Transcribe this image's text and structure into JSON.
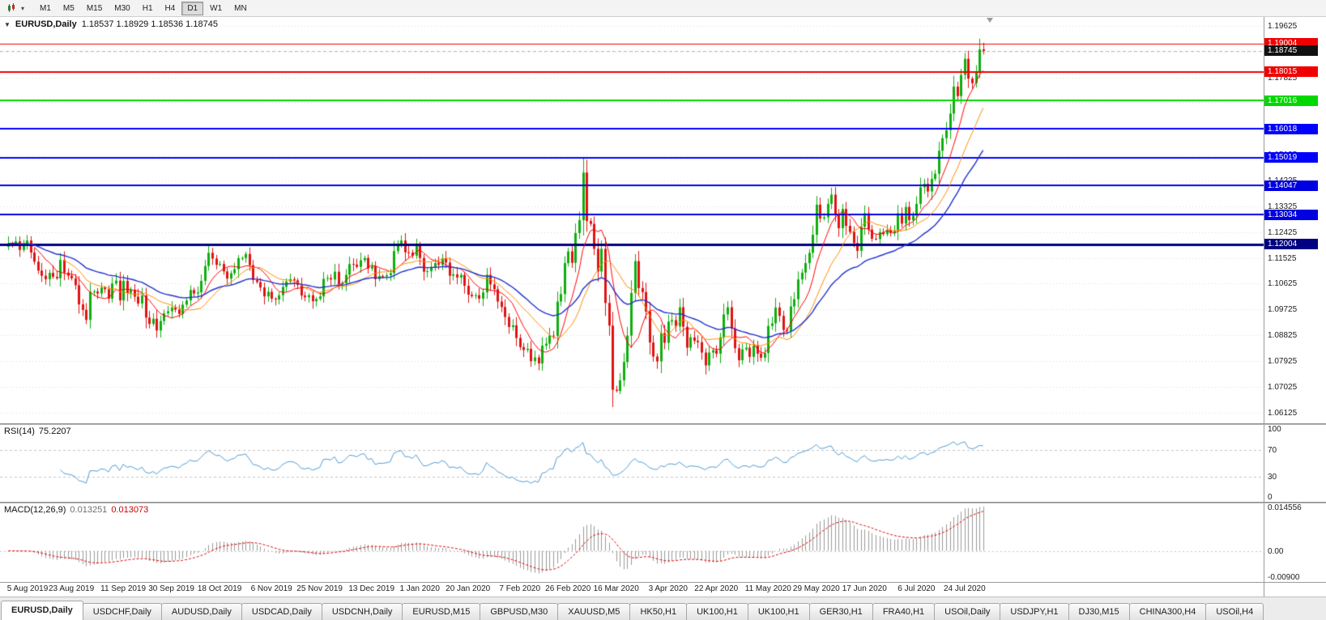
{
  "toolbar": {
    "timeframes": [
      "M1",
      "M5",
      "M15",
      "M30",
      "H1",
      "H4",
      "D1",
      "W1",
      "MN"
    ],
    "active": "D1",
    "chart_type_icon": "candlestick-chart-dropdown"
  },
  "main_chart": {
    "collapse_glyph": "▼",
    "header_symbol": "EURUSD,Daily",
    "header_ohlc": "1.18537 1.18929 1.18536 1.18745"
  },
  "price_axis": {
    "labels": [
      "1.19625",
      "1.18725",
      "1.17825",
      "1.16925",
      "1.16025",
      "1.15125",
      "1.14225",
      "1.13325",
      "1.12425",
      "1.11525",
      "1.10625",
      "1.09725",
      "1.08825",
      "1.07925",
      "1.07025",
      "1.06125"
    ]
  },
  "rsi_pane": {
    "name": "RSI(14)",
    "value": "75.2207",
    "axis_labels": [
      "100",
      "70",
      "30",
      "0"
    ]
  },
  "macd_pane": {
    "name": "MACD(12,26,9)",
    "value_main": "0.013251",
    "value_signal": "0.013073",
    "axis_labels": [
      "0.014556",
      "0.00",
      "-0.00900"
    ]
  },
  "date_axis": {
    "labels": [
      "5 Aug 2019",
      "23 Aug 2019",
      "11 Sep 2019",
      "30 Sep 2019",
      "18 Oct 2019",
      "6 Nov 2019",
      "25 Nov 2019",
      "13 Dec 2019",
      "1 Jan 2020",
      "20 Jan 2020",
      "7 Feb 2020",
      "26 Feb 2020",
      "16 Mar 2020",
      "3 Apr 2020",
      "22 Apr 2020",
      "11 May 2020",
      "29 May 2020",
      "17 Jun 2020",
      "6 Jul 2020",
      "24 Jul 2020"
    ]
  },
  "tabs": {
    "active": "EURUSD,Daily",
    "labels": [
      "EURUSD,Daily",
      "USDCHF,Daily",
      "AUDUSD,Daily",
      "USDCAD,Daily",
      "USDCNH,Daily",
      "EURUSD,M15",
      "GBPUSD,M30",
      "XAUUSD,M5",
      "HK50,H1",
      "UK100,H1",
      "UK100,H1",
      "GER30,H1",
      "FRA40,H1",
      "USOil,Daily",
      "USDJPY,H1",
      "DJ30,M15",
      "CHINA300,H4",
      "USOil,H4"
    ]
  },
  "chart_data": {
    "type": "candlestick",
    "symbol": "EURUSD",
    "timeframe": "Daily",
    "title": "EURUSD,Daily",
    "ohlc_display": "1.18537 1.18929 1.18536 1.18745",
    "current_price": 1.18745,
    "price_range": [
      1.0575,
      1.1993
    ],
    "x_range": [
      "5 Aug 2019",
      "4 Aug 2020"
    ],
    "colors": {
      "up": "#0EAE0E",
      "down": "#E01212",
      "bid_line": "#b8b8b8"
    },
    "closes": [
      1.1203,
      1.12,
      1.121,
      1.118,
      1.1199,
      1.1213,
      1.1171,
      1.1139,
      1.1108,
      1.109,
      1.1078,
      1.11,
      1.1086,
      1.1081,
      1.1145,
      1.1101,
      1.109,
      1.1081,
      1.1057,
      1.099,
      1.0971,
      1.0936,
      1.1034,
      1.1035,
      1.1028,
      1.1049,
      1.1043,
      1.101,
      1.1063,
      1.1073,
      1.1004,
      1.1072,
      1.103,
      1.1041,
      1.1017,
      1.0993,
      1.1021,
      1.0944,
      1.0922,
      1.094,
      1.0899,
      1.0932,
      1.0959,
      1.0966,
      1.0979,
      1.0972,
      1.0957,
      1.0989,
      1.1004,
      1.104,
      1.1028,
      1.1032,
      1.1072,
      1.1124,
      1.117,
      1.115,
      1.1128,
      1.1131,
      1.1105,
      1.108,
      1.1099,
      1.1113,
      1.1151,
      1.1152,
      1.1166,
      1.1127,
      1.1075,
      1.1068,
      1.1049,
      1.1018,
      1.1034,
      1.101,
      1.1007,
      1.1022,
      1.1051,
      1.107,
      1.1078,
      1.1074,
      1.1058,
      1.1021,
      1.1015,
      1.1022,
      1.1001,
      1.1009,
      1.1018,
      1.1079,
      1.1082,
      1.1077,
      1.1104,
      1.106,
      1.1064,
      1.1093,
      1.1131,
      1.1129,
      1.1121,
      1.1144,
      1.1152,
      1.1115,
      1.1123,
      1.1078,
      1.1089,
      1.1088,
      1.1092,
      1.1099,
      1.1176,
      1.1199,
      1.1213,
      1.1172,
      1.1171,
      1.116,
      1.1196,
      1.1152,
      1.1104,
      1.1106,
      1.1121,
      1.1134,
      1.1128,
      1.115,
      1.1136,
      1.109,
      1.1095,
      1.1084,
      1.1093,
      1.1055,
      1.1024,
      1.1019,
      1.1022,
      1.101,
      1.1032,
      1.1093,
      1.106,
      1.1043,
      1.1,
      1.0981,
      1.0946,
      1.0911,
      1.0917,
      1.0873,
      1.0841,
      1.0831,
      1.0835,
      1.0792,
      1.0805,
      1.0784,
      1.0846,
      1.0853,
      1.0881,
      1.088,
      1.1,
      1.1026,
      1.1134,
      1.1175,
      1.1135,
      1.1239,
      1.1284,
      1.145,
      1.1281,
      1.1271,
      1.1184,
      1.1105,
      1.1184,
      1.0995,
      1.0916,
      1.0692,
      1.0688,
      1.0725,
      1.0789,
      1.0881,
      1.103,
      1.1141,
      1.1047,
      1.1033,
      1.0965,
      1.0857,
      1.0808,
      1.0791,
      1.089,
      1.0856,
      1.093,
      1.0935,
      1.0913,
      1.098,
      1.0912,
      1.0839,
      1.0875,
      1.0863,
      1.0858,
      1.0822,
      1.0777,
      1.0822,
      1.083,
      1.0818,
      1.0875,
      1.0955,
      1.098,
      1.0906,
      1.0837,
      1.0795,
      1.0833,
      1.0839,
      1.0807,
      1.0846,
      1.0818,
      1.0804,
      1.082,
      1.0915,
      1.0924,
      1.0979,
      1.095,
      1.0901,
      1.0897,
      1.0983,
      1.1008,
      1.1077,
      1.1101,
      1.1134,
      1.117,
      1.1233,
      1.1338,
      1.129,
      1.1294,
      1.1341,
      1.1373,
      1.1301,
      1.1256,
      1.1323,
      1.1264,
      1.1243,
      1.1204,
      1.1177,
      1.1261,
      1.1308,
      1.1251,
      1.1219,
      1.1218,
      1.1242,
      1.1235,
      1.125,
      1.1239,
      1.1248,
      1.1308,
      1.1272,
      1.133,
      1.1284,
      1.13,
      1.1341,
      1.1399,
      1.1411,
      1.1384,
      1.1428,
      1.1446,
      1.1526,
      1.157,
      1.1598,
      1.1656,
      1.175,
      1.1717,
      1.1791,
      1.1847,
      1.1778,
      1.1762,
      1.1802,
      1.188,
      1.18745
    ],
    "hlines": [
      {
        "value": 1.19004,
        "color": "#F00000",
        "width": 1
      },
      {
        "value": 1.18015,
        "color": "#F00000",
        "width": 2
      },
      {
        "value": 1.17016,
        "color": "#00D800",
        "width": 2
      },
      {
        "value": 1.16018,
        "color": "#0000FF",
        "width": 2
      },
      {
        "value": 1.15019,
        "color": "#0000FF",
        "width": 2
      },
      {
        "value": 1.14047,
        "color": "#0000E0",
        "width": 2
      },
      {
        "value": 1.13034,
        "color": "#0000E0",
        "width": 2
      },
      {
        "value": 1.12004,
        "color": "#000080",
        "width": 3
      }
    ],
    "moving_averages": [
      {
        "period": 8,
        "method": "sma",
        "color": "#FF0000",
        "width": 1
      },
      {
        "period": 16,
        "method": "sma",
        "color": "#FF8C00",
        "width": 1
      },
      {
        "period": 34,
        "method": "ema",
        "color": "#2233CC",
        "width": 1.4
      }
    ],
    "rsi": {
      "period": 14,
      "value": 75.2207,
      "levels": [
        30,
        70
      ],
      "color": "#4F9AD2",
      "range": [
        0,
        100
      ]
    },
    "macd": {
      "fast": 12,
      "slow": 26,
      "signal": 9,
      "value_main": 0.013251,
      "value_signal": 0.013073,
      "range": [
        -0.0105,
        0.016
      ],
      "histogram_color": "#9a9a9a",
      "signal_color": "#E00000"
    }
  }
}
